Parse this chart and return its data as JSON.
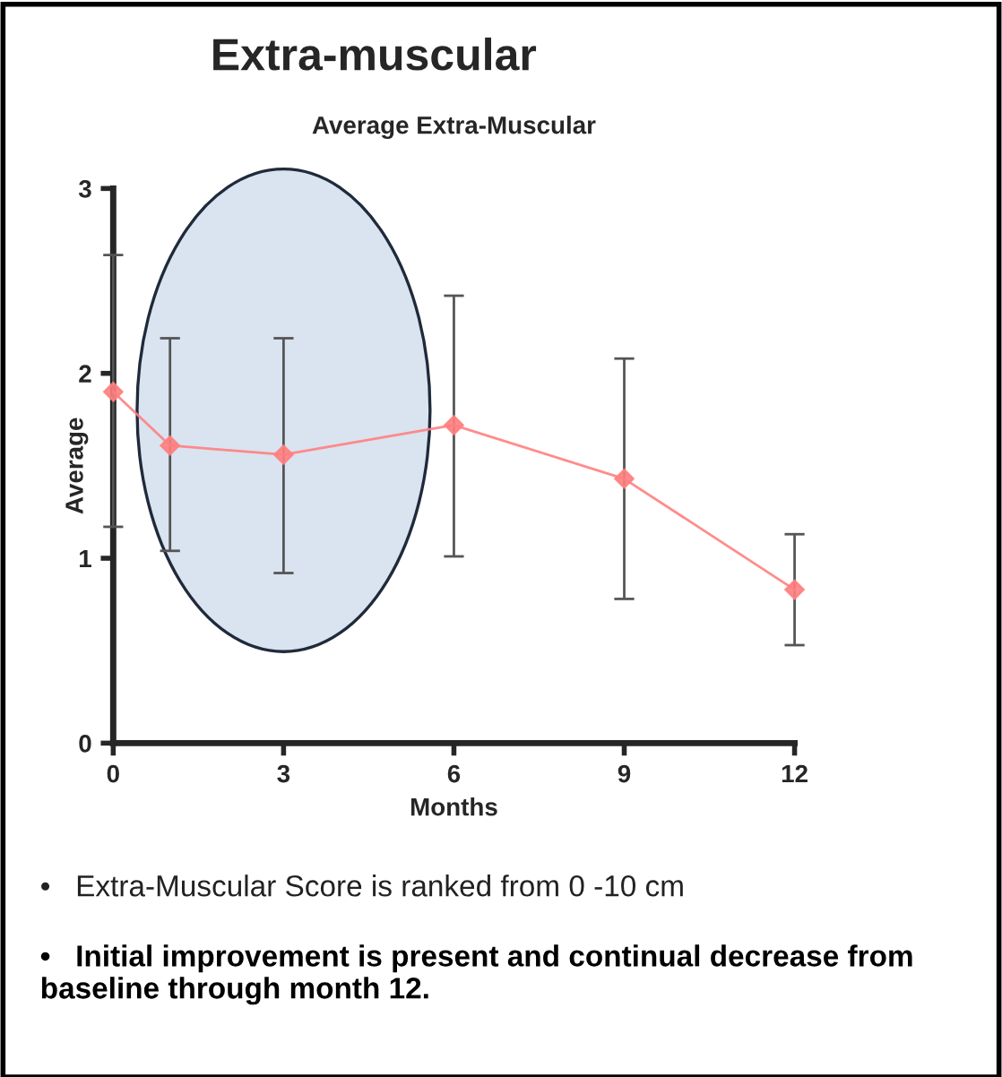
{
  "chart_data": {
    "type": "line",
    "title": "Extra-muscular",
    "subtitle": "Average Extra-Muscular",
    "xlabel": "Months",
    "ylabel": "Average",
    "x": [
      0,
      1,
      3,
      6,
      9,
      12
    ],
    "series": [
      {
        "color": "#ff7f7f",
        "values": [
          1.9,
          1.61,
          1.56,
          1.72,
          1.43,
          0.83
        ],
        "errors": [
          [
            1.17,
            2.64
          ],
          [
            1.04,
            2.19
          ],
          [
            0.92,
            2.19
          ],
          [
            1.01,
            2.42
          ],
          [
            0.78,
            2.08
          ],
          [
            0.53,
            1.13
          ]
        ]
      }
    ],
    "xlim": [
      0,
      12
    ],
    "xticks": [
      0,
      3,
      6,
      9,
      12
    ],
    "ylim": [
      0,
      3
    ],
    "yticks": [
      0,
      1,
      2,
      3
    ],
    "marker": "diamond",
    "line_style": "solid",
    "grid": false,
    "legend": false,
    "annotations": [
      "•   Extra-Muscular Score is ranked from 0 -10 cm",
      "•   Initial improvement is present and continual decrease from baseline through month 12."
    ]
  }
}
